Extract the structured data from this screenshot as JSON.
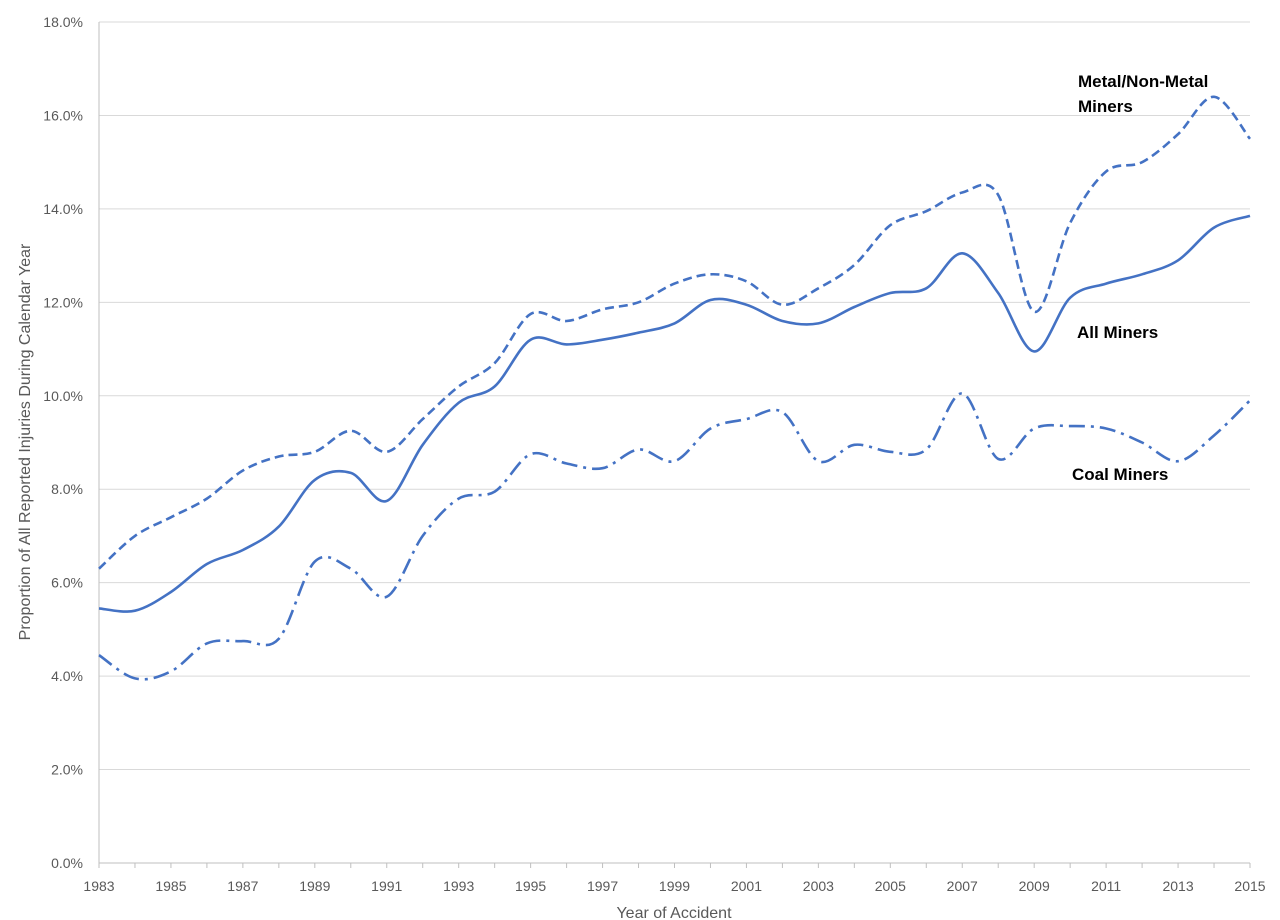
{
  "chart_data": {
    "type": "line",
    "xlabel": "Year of Accident",
    "ylabel": "Proportion of All Reported Injuries During Calendar Year",
    "x": [
      1983,
      1984,
      1985,
      1986,
      1987,
      1988,
      1989,
      1990,
      1991,
      1992,
      1993,
      1994,
      1995,
      1996,
      1997,
      1998,
      1999,
      2000,
      2001,
      2002,
      2003,
      2004,
      2005,
      2006,
      2007,
      2008,
      2009,
      2010,
      2011,
      2012,
      2013,
      2014,
      2015
    ],
    "xlim": [
      1983,
      2015
    ],
    "xticks": [
      "1983",
      "1985",
      "1987",
      "1989",
      "1991",
      "1993",
      "1995",
      "1997",
      "1999",
      "2001",
      "2003",
      "2005",
      "2007",
      "2009",
      "2011",
      "2013",
      "2015"
    ],
    "ylim": [
      0,
      18
    ],
    "yticks": [
      "0.0%",
      "2.0%",
      "4.0%",
      "6.0%",
      "8.0%",
      "10.0%",
      "12.0%",
      "14.0%",
      "16.0%",
      "18.0%"
    ],
    "y_unit": "%",
    "grid": true,
    "series": [
      {
        "name": "Metal/Non-Metal Miners",
        "label_line2": "Miners",
        "style": "dashed",
        "color": "#4472c4",
        "values": [
          6.3,
          7.0,
          7.4,
          7.8,
          8.4,
          8.7,
          8.8,
          9.25,
          8.8,
          9.5,
          10.2,
          10.7,
          11.75,
          11.6,
          11.85,
          12.0,
          12.4,
          12.6,
          12.45,
          11.95,
          12.3,
          12.8,
          13.65,
          13.95,
          14.35,
          14.3,
          11.8,
          13.7,
          14.8,
          15.0,
          15.6,
          16.4,
          15.5
        ]
      },
      {
        "name": "All Miners",
        "style": "solid",
        "color": "#4472c4",
        "values": [
          5.45,
          5.4,
          5.8,
          6.4,
          6.7,
          7.2,
          8.2,
          8.35,
          7.75,
          8.95,
          9.85,
          10.2,
          11.2,
          11.1,
          11.2,
          11.35,
          11.55,
          12.05,
          11.95,
          11.6,
          11.55,
          11.9,
          12.2,
          12.3,
          13.05,
          12.2,
          10.95,
          12.1,
          12.4,
          12.6,
          12.9,
          13.6,
          13.85
        ]
      },
      {
        "name": "Coal Miners",
        "style": "dashdot",
        "color": "#4472c4",
        "values": [
          4.45,
          3.95,
          4.1,
          4.7,
          4.75,
          4.8,
          6.45,
          6.3,
          5.7,
          7.0,
          7.8,
          7.95,
          8.75,
          8.55,
          8.45,
          8.85,
          8.6,
          9.3,
          9.5,
          9.65,
          8.6,
          8.95,
          8.8,
          8.85,
          10.05,
          8.65,
          9.3,
          9.35,
          9.3,
          9.0,
          8.6,
          9.15,
          9.9
        ]
      }
    ],
    "labels": {
      "metal_line1": "Metal/Non-Metal",
      "metal_line2": "Miners",
      "all": "All Miners",
      "coal": "Coal Miners"
    }
  }
}
